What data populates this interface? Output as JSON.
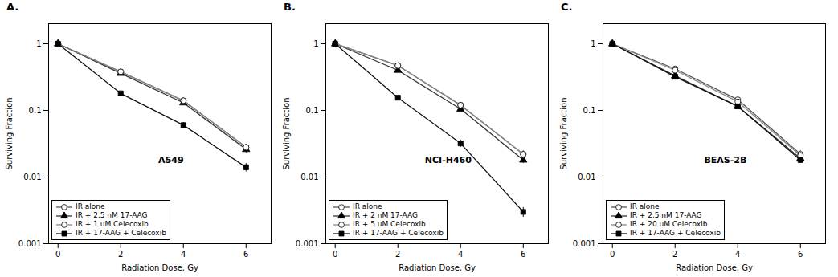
{
  "chart_data": [
    {
      "type": "line",
      "title": "A.",
      "annotations": [
        "A549"
      ],
      "xlabel": "Radiation Dose, Gy",
      "ylabel": "Surviving Fraction",
      "log": "y",
      "grid": false,
      "legend": "lower left",
      "xlim": [
        -0.3,
        6.8
      ],
      "xticks": [
        0,
        2,
        4,
        6
      ],
      "ylim": [
        0.001,
        2.0
      ],
      "yticks": [
        0.001,
        0.01,
        0.1,
        1
      ],
      "x": [
        0,
        2,
        4,
        6
      ],
      "series": [
        {
          "name": "IR alone",
          "color": "#555555",
          "marker": "circle-open",
          "line_style": "solid",
          "values": [
            1.0,
            0.38,
            0.14,
            0.028
          ],
          "yerr": [
            0.0,
            0.02,
            0.015,
            0.003
          ]
        },
        {
          "name": "IR + 2.5 nM 17-AAG",
          "color": "#333333",
          "marker": "triangle",
          "line_style": "solid",
          "values": [
            1.0,
            0.36,
            0.13,
            0.026
          ],
          "yerr": [
            0.0,
            0.02,
            0.012,
            0.003
          ]
        },
        {
          "name": "IR + 1 uM Celecoxib",
          "color": "#888888",
          "marker": "circle-open",
          "line_style": "solid",
          "values": [
            1.0,
            0.38,
            0.14,
            0.028
          ],
          "yerr": [
            0.0,
            0.02,
            0.015,
            0.003
          ]
        },
        {
          "name": "IR + 17-AAG + Celecoxib",
          "color": "#111111",
          "marker": "square",
          "line_style": "solid",
          "values": [
            1.0,
            0.18,
            0.06,
            0.014
          ],
          "yerr": [
            0.0,
            0.015,
            0.006,
            0.002
          ]
        }
      ]
    },
    {
      "type": "line",
      "title": "B.",
      "annotations": [
        "NCI-H460"
      ],
      "xlabel": "Radiation Dose, Gy",
      "ylabel": "Surviving Fraction",
      "log": "y",
      "grid": false,
      "legend": "lower left",
      "xlim": [
        -0.3,
        6.8
      ],
      "xticks": [
        0,
        2,
        4,
        6
      ],
      "ylim": [
        0.001,
        2.0
      ],
      "yticks": [
        0.001,
        0.01,
        0.1,
        1
      ],
      "x": [
        0,
        2,
        4,
        6
      ],
      "series": [
        {
          "name": "IR alone",
          "color": "#555555",
          "marker": "circle-open",
          "line_style": "solid",
          "values": [
            1.0,
            0.47,
            0.12,
            0.022
          ],
          "yerr": [
            0.0,
            0.025,
            0.01,
            0.003
          ]
        },
        {
          "name": "IR + 2 nM 17-AAG",
          "color": "#333333",
          "marker": "triangle",
          "line_style": "solid",
          "values": [
            1.0,
            0.4,
            0.105,
            0.018
          ],
          "yerr": [
            0.0,
            0.025,
            0.01,
            0.002
          ]
        },
        {
          "name": "IR + 5 uM Celecoxib",
          "color": "#888888",
          "marker": "circle-open",
          "line_style": "solid",
          "values": [
            1.0,
            0.47,
            0.12,
            0.022
          ],
          "yerr": [
            0.0,
            0.025,
            0.01,
            0.003
          ]
        },
        {
          "name": "IR + 17-AAG + Celecoxib",
          "color": "#111111",
          "marker": "square",
          "line_style": "solid",
          "values": [
            1.0,
            0.155,
            0.032,
            0.003
          ],
          "yerr": [
            0.0,
            0.012,
            0.004,
            0.0005
          ]
        }
      ]
    },
    {
      "type": "line",
      "title": "C.",
      "annotations": [
        "BEAS-2B"
      ],
      "xlabel": "Radiation Dose, Gy",
      "ylabel": "Surviving Fraction",
      "log": "y",
      "grid": false,
      "legend": "lower left",
      "xlim": [
        -0.3,
        6.8
      ],
      "xticks": [
        0,
        2,
        4,
        6
      ],
      "ylim": [
        0.001,
        2.0
      ],
      "yticks": [
        0.001,
        0.01,
        0.1,
        1
      ],
      "x": [
        0,
        2,
        4,
        6
      ],
      "series": [
        {
          "name": "IR alone",
          "color": "#555555",
          "marker": "circle-open",
          "line_style": "solid",
          "values": [
            1.0,
            0.42,
            0.145,
            0.022
          ],
          "yerr": [
            0.0,
            0.02,
            0.012,
            0.003
          ]
        },
        {
          "name": "IR + 2.5 nM 17-AAG",
          "color": "#333333",
          "marker": "triangle",
          "line_style": "solid",
          "values": [
            1.0,
            0.33,
            0.115,
            0.019
          ],
          "yerr": [
            0.0,
            0.02,
            0.01,
            0.002
          ]
        },
        {
          "name": "IR + 20 uM Celecoxib",
          "color": "#888888",
          "marker": "circle-open",
          "line_style": "solid",
          "values": [
            1.0,
            0.4,
            0.135,
            0.021
          ],
          "yerr": [
            0.0,
            0.02,
            0.012,
            0.003
          ]
        },
        {
          "name": "IR + 17-AAG + Celecoxib",
          "color": "#111111",
          "marker": "square",
          "line_style": "solid",
          "values": [
            1.0,
            0.32,
            0.115,
            0.018
          ],
          "yerr": [
            0.0,
            0.018,
            0.01,
            0.002
          ]
        }
      ]
    }
  ]
}
